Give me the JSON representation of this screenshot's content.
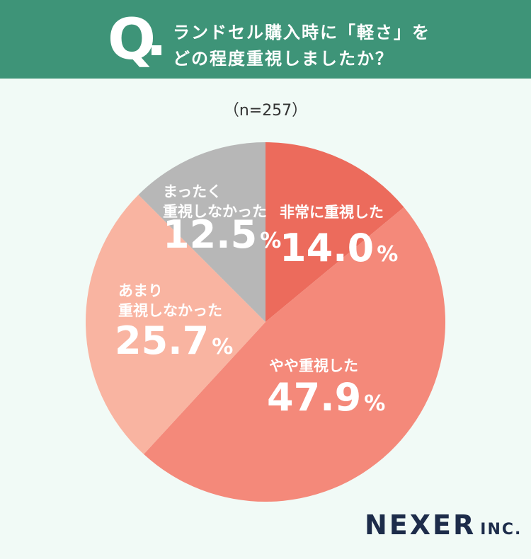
{
  "header": {
    "q_mark": "Q",
    "question_line1": "ランドセル購入時に「軽さ」を",
    "question_line2": "どの程度重視しましたか？"
  },
  "sample_size": "（n=257）",
  "chart_data": {
    "type": "pie",
    "title": "ランドセル購入時に「軽さ」をどの程度重視しましたか？",
    "n": 257,
    "unit": "%",
    "slices": [
      {
        "label_lines": [
          "非常に重視した"
        ],
        "value": 14.0,
        "value_text": "14.0",
        "color": "#ec6b5c"
      },
      {
        "label_lines": [
          "やや重視した"
        ],
        "value": 47.9,
        "value_text": "47.9",
        "color": "#f4897a"
      },
      {
        "label_lines": [
          "あまり",
          "重視しなかった"
        ],
        "value": 25.7,
        "value_text": "25.7",
        "color": "#f9b4a1"
      },
      {
        "label_lines": [
          "まったく",
          "重視しなかった"
        ],
        "value": 12.5,
        "value_text": "12.5",
        "color": "#b7b7b7"
      }
    ]
  },
  "brand": {
    "name": "NEXER",
    "suffix": "INC."
  }
}
